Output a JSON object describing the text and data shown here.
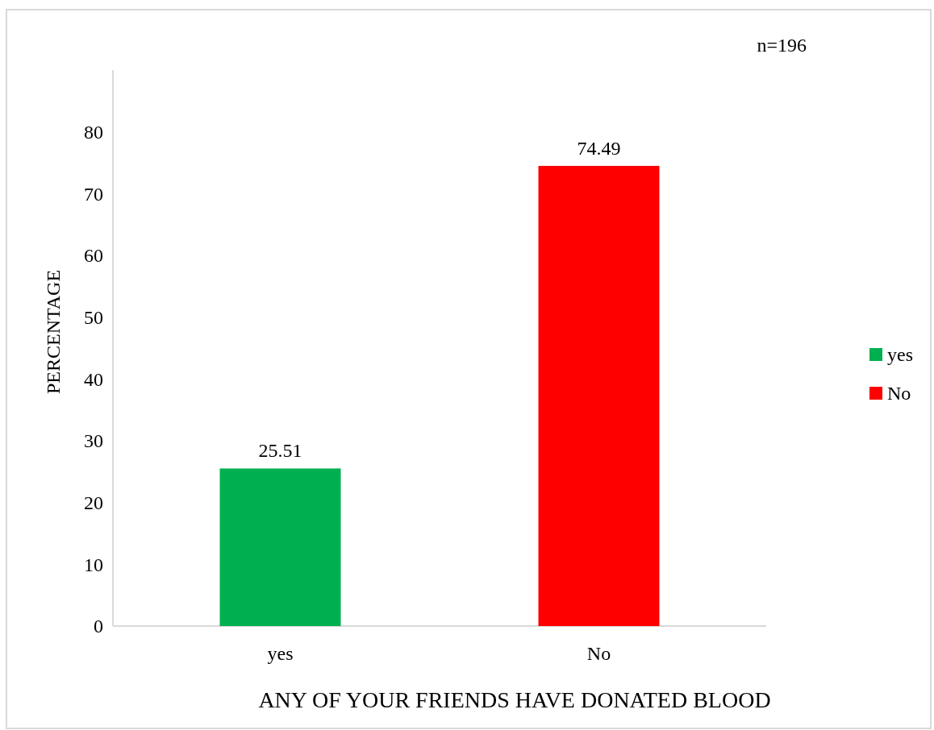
{
  "chart_data": {
    "type": "bar",
    "xlabel": "ANY OF YOUR FRIENDS HAVE DONATED BLOOD",
    "ylabel": "PERCENTAGE",
    "categories": [
      "yes",
      "No"
    ],
    "series": [
      {
        "name": "yes",
        "color": "#00b050",
        "values": [
          25.51,
          null
        ]
      },
      {
        "name": "No",
        "color": "#ff0000",
        "values": [
          null,
          74.49
        ]
      }
    ],
    "ylim": [
      0,
      90
    ],
    "yticks": [
      0,
      10,
      20,
      30,
      40,
      50,
      60,
      70,
      80
    ],
    "data_labels": true,
    "legend": "right",
    "annotations": [
      "n=196"
    ]
  }
}
